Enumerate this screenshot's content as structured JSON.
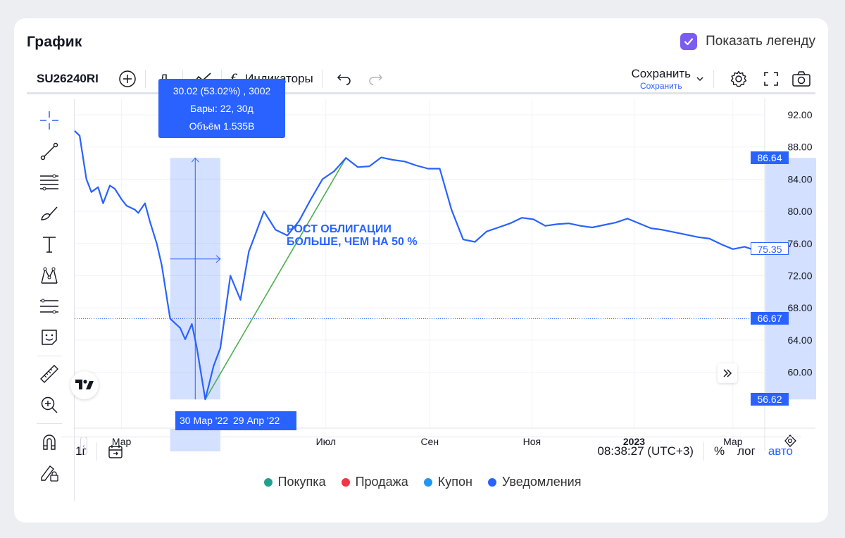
{
  "card": {
    "title": "График",
    "show_legend_label": "Показать легенду",
    "show_legend_checked": true
  },
  "toolbar": {
    "symbol": "SU26240RI",
    "interval": "Д",
    "indicators": "Индикаторы",
    "save_label": "Сохранить",
    "save_sublabel": "Сохранить"
  },
  "chart_data": {
    "type": "line",
    "x": [
      "2022-02-01",
      "2022-02-04",
      "2022-02-08",
      "2022-02-11",
      "2022-02-15",
      "2022-02-18",
      "2022-02-22",
      "2022-02-25",
      "2022-03-01",
      "2022-03-04",
      "2022-03-09",
      "2022-03-11",
      "2022-03-15",
      "2022-03-18",
      "2022-03-22",
      "2022-03-25",
      "2022-03-30",
      "2022-04-05",
      "2022-04-08",
      "2022-04-12",
      "2022-04-15",
      "2022-04-20",
      "2022-04-25",
      "2022-04-29",
      "2022-05-05",
      "2022-05-11",
      "2022-05-16",
      "2022-05-20",
      "2022-05-25",
      "2022-06-01",
      "2022-06-08",
      "2022-06-15",
      "2022-06-22",
      "2022-06-29",
      "2022-07-06",
      "2022-07-13",
      "2022-07-20",
      "2022-07-27",
      "2022-08-03",
      "2022-08-10",
      "2022-08-17",
      "2022-08-24",
      "2022-08-31",
      "2022-09-07",
      "2022-09-14",
      "2022-09-21",
      "2022-09-28",
      "2022-10-05",
      "2022-10-12",
      "2022-10-19",
      "2022-10-26",
      "2022-11-02",
      "2022-11-09",
      "2022-11-16",
      "2022-11-23",
      "2022-11-30",
      "2022-12-07",
      "2022-12-14",
      "2022-12-21",
      "2022-12-28",
      "2023-01-11",
      "2023-01-18",
      "2023-01-25",
      "2023-02-01",
      "2023-02-08",
      "2023-02-15",
      "2023-02-22",
      "2023-03-01",
      "2023-03-08",
      "2023-03-15",
      "2023-03-20"
    ],
    "values": [
      90.0,
      89.4,
      84.0,
      82.4,
      83.0,
      81.0,
      83.2,
      82.8,
      81.5,
      80.7,
      80.2,
      79.8,
      81.0,
      78.7,
      76.0,
      73.3,
      66.67,
      65.5,
      64.1,
      66.0,
      63.0,
      56.62,
      60.8,
      63.0,
      72.0,
      69.0,
      75.0,
      77.2,
      80.0,
      77.7,
      77.0,
      78.8,
      81.5,
      84.0,
      85.0,
      86.64,
      85.5,
      85.6,
      86.7,
      86.4,
      86.2,
      85.7,
      85.3,
      85.3,
      80.2,
      76.5,
      76.2,
      77.5,
      78.0,
      78.5,
      79.2,
      79.0,
      78.2,
      78.4,
      78.5,
      78.2,
      78.0,
      78.3,
      78.6,
      79.1,
      77.9,
      77.7,
      77.4,
      77.1,
      76.8,
      76.6,
      75.9,
      75.3,
      75.6,
      75.1,
      75.35
    ],
    "ylim": [
      56.0,
      93.0
    ],
    "y_ticks": [
      "92.00",
      "88.00",
      "84.00",
      "80.00",
      "76.00",
      "72.00",
      "68.00",
      "64.00",
      "60.00"
    ],
    "x_ticks": [
      "Мар",
      "Июл",
      "Сен",
      "Ноя",
      "2023",
      "Мар"
    ],
    "grid": true,
    "color": "#2962ff"
  },
  "measure": {
    "tooltip_line1": "30.02 (53.02%) , 3002",
    "tooltip_line2": "Бары: 22, 30д",
    "tooltip_line3": "Объём 1.535B",
    "start_date": "30 Мар '22",
    "end_date": "29 Апр '22",
    "low": "56.62",
    "high": "86.64",
    "color": "#2962ff"
  },
  "price_tags": {
    "last": "75.35",
    "crosshair": "66.67"
  },
  "annotation": {
    "line1": "РОСТ ОБЛИГАЦИИ",
    "line2": "БОЛЬШЕ, ЧЕМ НА 50 %",
    "color": "#2962ff"
  },
  "bottom": {
    "range": "1г",
    "time": "08:38:27 (UTC+3)",
    "percent": "%",
    "log": "лог",
    "auto": "авто"
  },
  "legend": [
    {
      "label": "Покупка",
      "color": "#22a08d"
    },
    {
      "label": "Продажа",
      "color": "#f23645"
    },
    {
      "label": "Купон",
      "color": "#2196f3"
    },
    {
      "label": "Уведомления",
      "color": "#2962ff"
    }
  ]
}
